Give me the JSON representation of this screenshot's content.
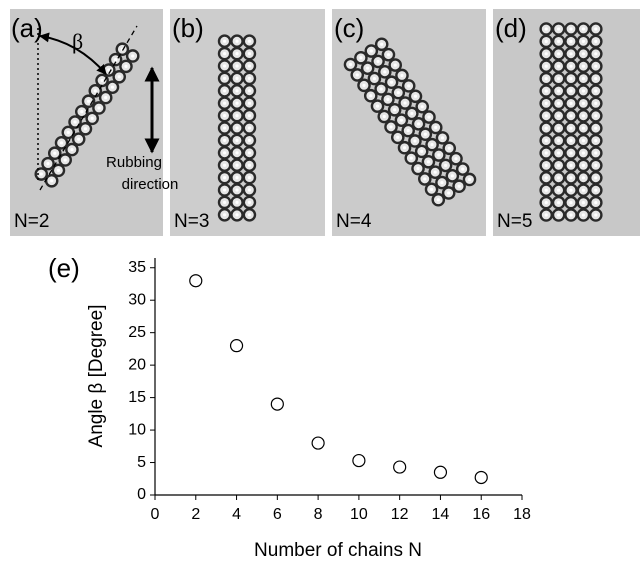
{
  "panels": [
    {
      "label": "(a)",
      "caption": "N=2"
    },
    {
      "label": "(b)",
      "caption": "N=3"
    },
    {
      "label": "(c)",
      "caption": "N=4"
    },
    {
      "label": "(d)",
      "caption": "N=5"
    }
  ],
  "annotations": {
    "angle": "β",
    "arrow_line1": "Rubbing",
    "arrow_line2": "direction"
  },
  "chart_data": {
    "type": "scatter",
    "label": "(e)",
    "x_label": "Number of chains N",
    "y_label": "Angle β [Degree]",
    "x": [
      2,
      4,
      6,
      8,
      10,
      12,
      14,
      16
    ],
    "values": [
      33,
      23,
      14,
      8,
      5.3,
      4.3,
      3.5,
      2.7
    ],
    "color": "#000000",
    "xlim": [
      0,
      18
    ],
    "xticks": [
      0,
      2,
      4,
      6,
      8,
      10,
      12,
      14,
      16,
      18
    ],
    "ylim": [
      0,
      36.5
    ],
    "yticks": [
      0,
      5,
      10,
      15,
      20,
      25,
      30,
      35
    ]
  }
}
